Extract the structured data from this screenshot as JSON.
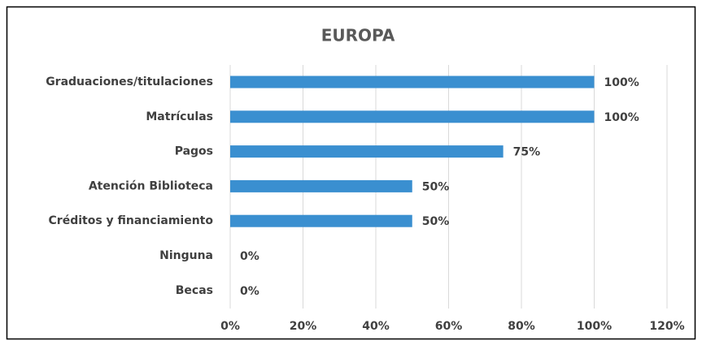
{
  "chart_data": {
    "type": "bar",
    "orientation": "horizontal",
    "title": "EUROPA",
    "categories": [
      "Graduaciones/titulaciones",
      "Matrículas",
      "Pagos",
      "Atención Biblioteca",
      "Créditos y financiamiento",
      "Ninguna",
      "Becas"
    ],
    "values": [
      100,
      100,
      75,
      50,
      50,
      0,
      0
    ],
    "value_labels": [
      "100%",
      "100%",
      "75%",
      "50%",
      "50%",
      "0%",
      "0%"
    ],
    "color": "#3a8fd0",
    "xlim": [
      0,
      120
    ],
    "xticks": [
      {
        "value": 0,
        "label": "0%"
      },
      {
        "value": 20,
        "label": "20%"
      },
      {
        "value": 40,
        "label": "40%"
      },
      {
        "value": 60,
        "label": "60%"
      },
      {
        "value": 80,
        "label": "80%"
      },
      {
        "value": 100,
        "label": "100%"
      },
      {
        "value": 120,
        "label": "120%"
      }
    ],
    "grid": true
  }
}
